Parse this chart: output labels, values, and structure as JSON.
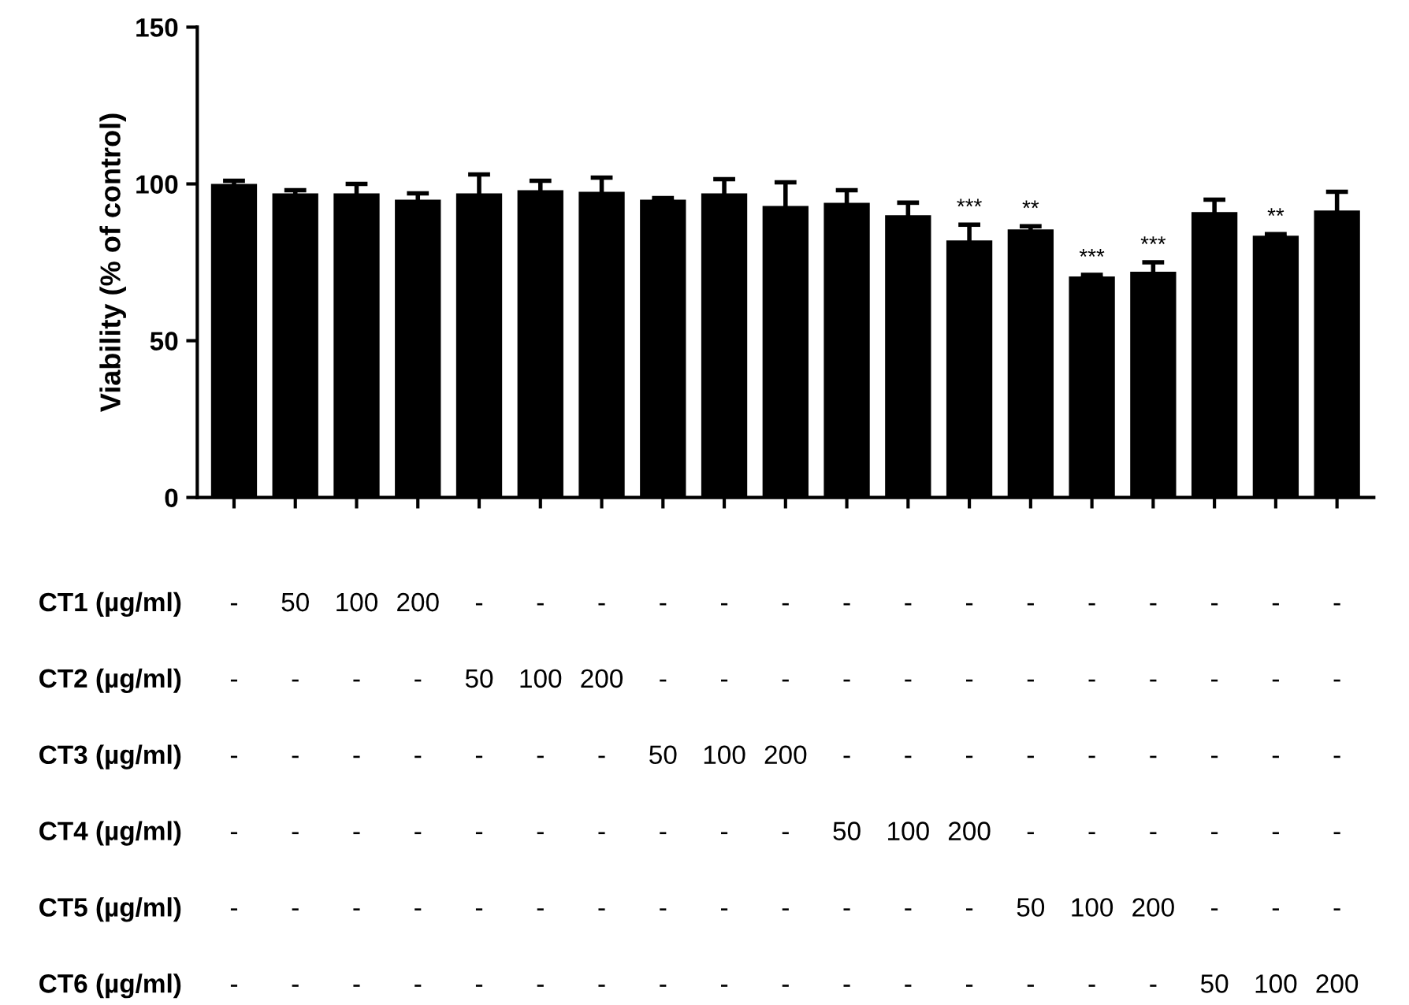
{
  "chart_data": {
    "type": "bar",
    "ylabel": "Viability (% of control)",
    "categories": [
      "-\n-\n-\n-\n-\n-",
      "50\n-\n-\n-\n-\n-",
      "100\n-\n-\n-\n-\n-",
      "200\n-\n-\n-\n-\n-",
      "-\n50\n-\n-\n-\n-",
      "-\n100\n-\n-\n-\n-",
      "-\n200\n-\n-\n-\n-",
      "-\n-\n50\n-\n-\n-",
      "-\n-\n100\n-\n-\n-",
      "-\n-\n200\n-\n-\n-",
      "-\n-\n-\n50\n-\n-",
      "-\n-\n-\n100\n-\n-",
      "-\n-\n-\n200\n-\n-",
      "-\n-\n-\n-\n50\n-",
      "-\n-\n-\n-\n100\n-",
      "-\n-\n-\n-\n200\n-",
      "-\n-\n-\n-\n-\n50",
      "-\n-\n-\n-\n-\n100",
      "-\n-\n-\n-\n-\n200"
    ],
    "values": [
      100,
      97,
      97,
      95,
      97,
      98,
      97.5,
      95,
      97,
      93,
      94,
      90,
      82,
      85.5,
      70.5,
      72,
      91,
      83.5,
      91.5
    ],
    "errors": [
      1,
      1,
      3,
      2,
      6,
      3,
      4.5,
      0.5,
      4.5,
      7.5,
      4,
      4,
      5,
      1,
      0.5,
      3,
      4,
      0.5,
      6
    ],
    "value_labels": [
      null,
      null,
      null,
      null,
      null,
      null,
      null,
      null,
      null,
      null,
      null,
      null,
      "***",
      "**",
      "***",
      "***",
      null,
      "**",
      null
    ],
    "color": "#000000",
    "ylim": [
      0,
      150
    ],
    "yticks": [
      0,
      50,
      100,
      150
    ],
    "grid": false,
    "legend": false,
    "annotations": [
      "CT1 (µg/ml)",
      "CT2 (µg/ml)",
      "CT3 (µg/ml)",
      "CT4 (µg/ml)",
      "CT5 (µg/ml)",
      "CT6 (µg/ml)"
    ]
  }
}
